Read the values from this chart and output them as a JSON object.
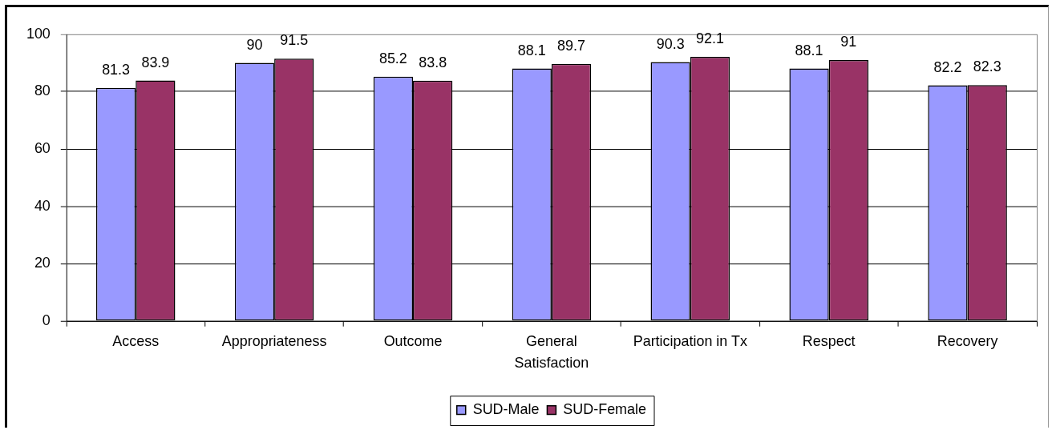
{
  "chart_data": {
    "type": "bar",
    "categories": [
      "Access",
      "Appropriateness",
      "Outcome",
      "General Satisfaction",
      "Participation in Tx",
      "Respect",
      "Recovery"
    ],
    "series": [
      {
        "name": "SUD-Male",
        "color": "#9999ff",
        "values": [
          81.3,
          90,
          85.2,
          88.1,
          90.3,
          88.1,
          82.2
        ]
      },
      {
        "name": "SUD-Female",
        "color": "#993366",
        "values": [
          83.9,
          91.5,
          83.8,
          89.7,
          92.1,
          91,
          82.3
        ]
      }
    ],
    "ylim": [
      0,
      100
    ],
    "yticks": [
      0,
      20,
      40,
      60,
      80,
      100
    ],
    "grid": "y",
    "legend": "bottom",
    "data_labels": true
  }
}
